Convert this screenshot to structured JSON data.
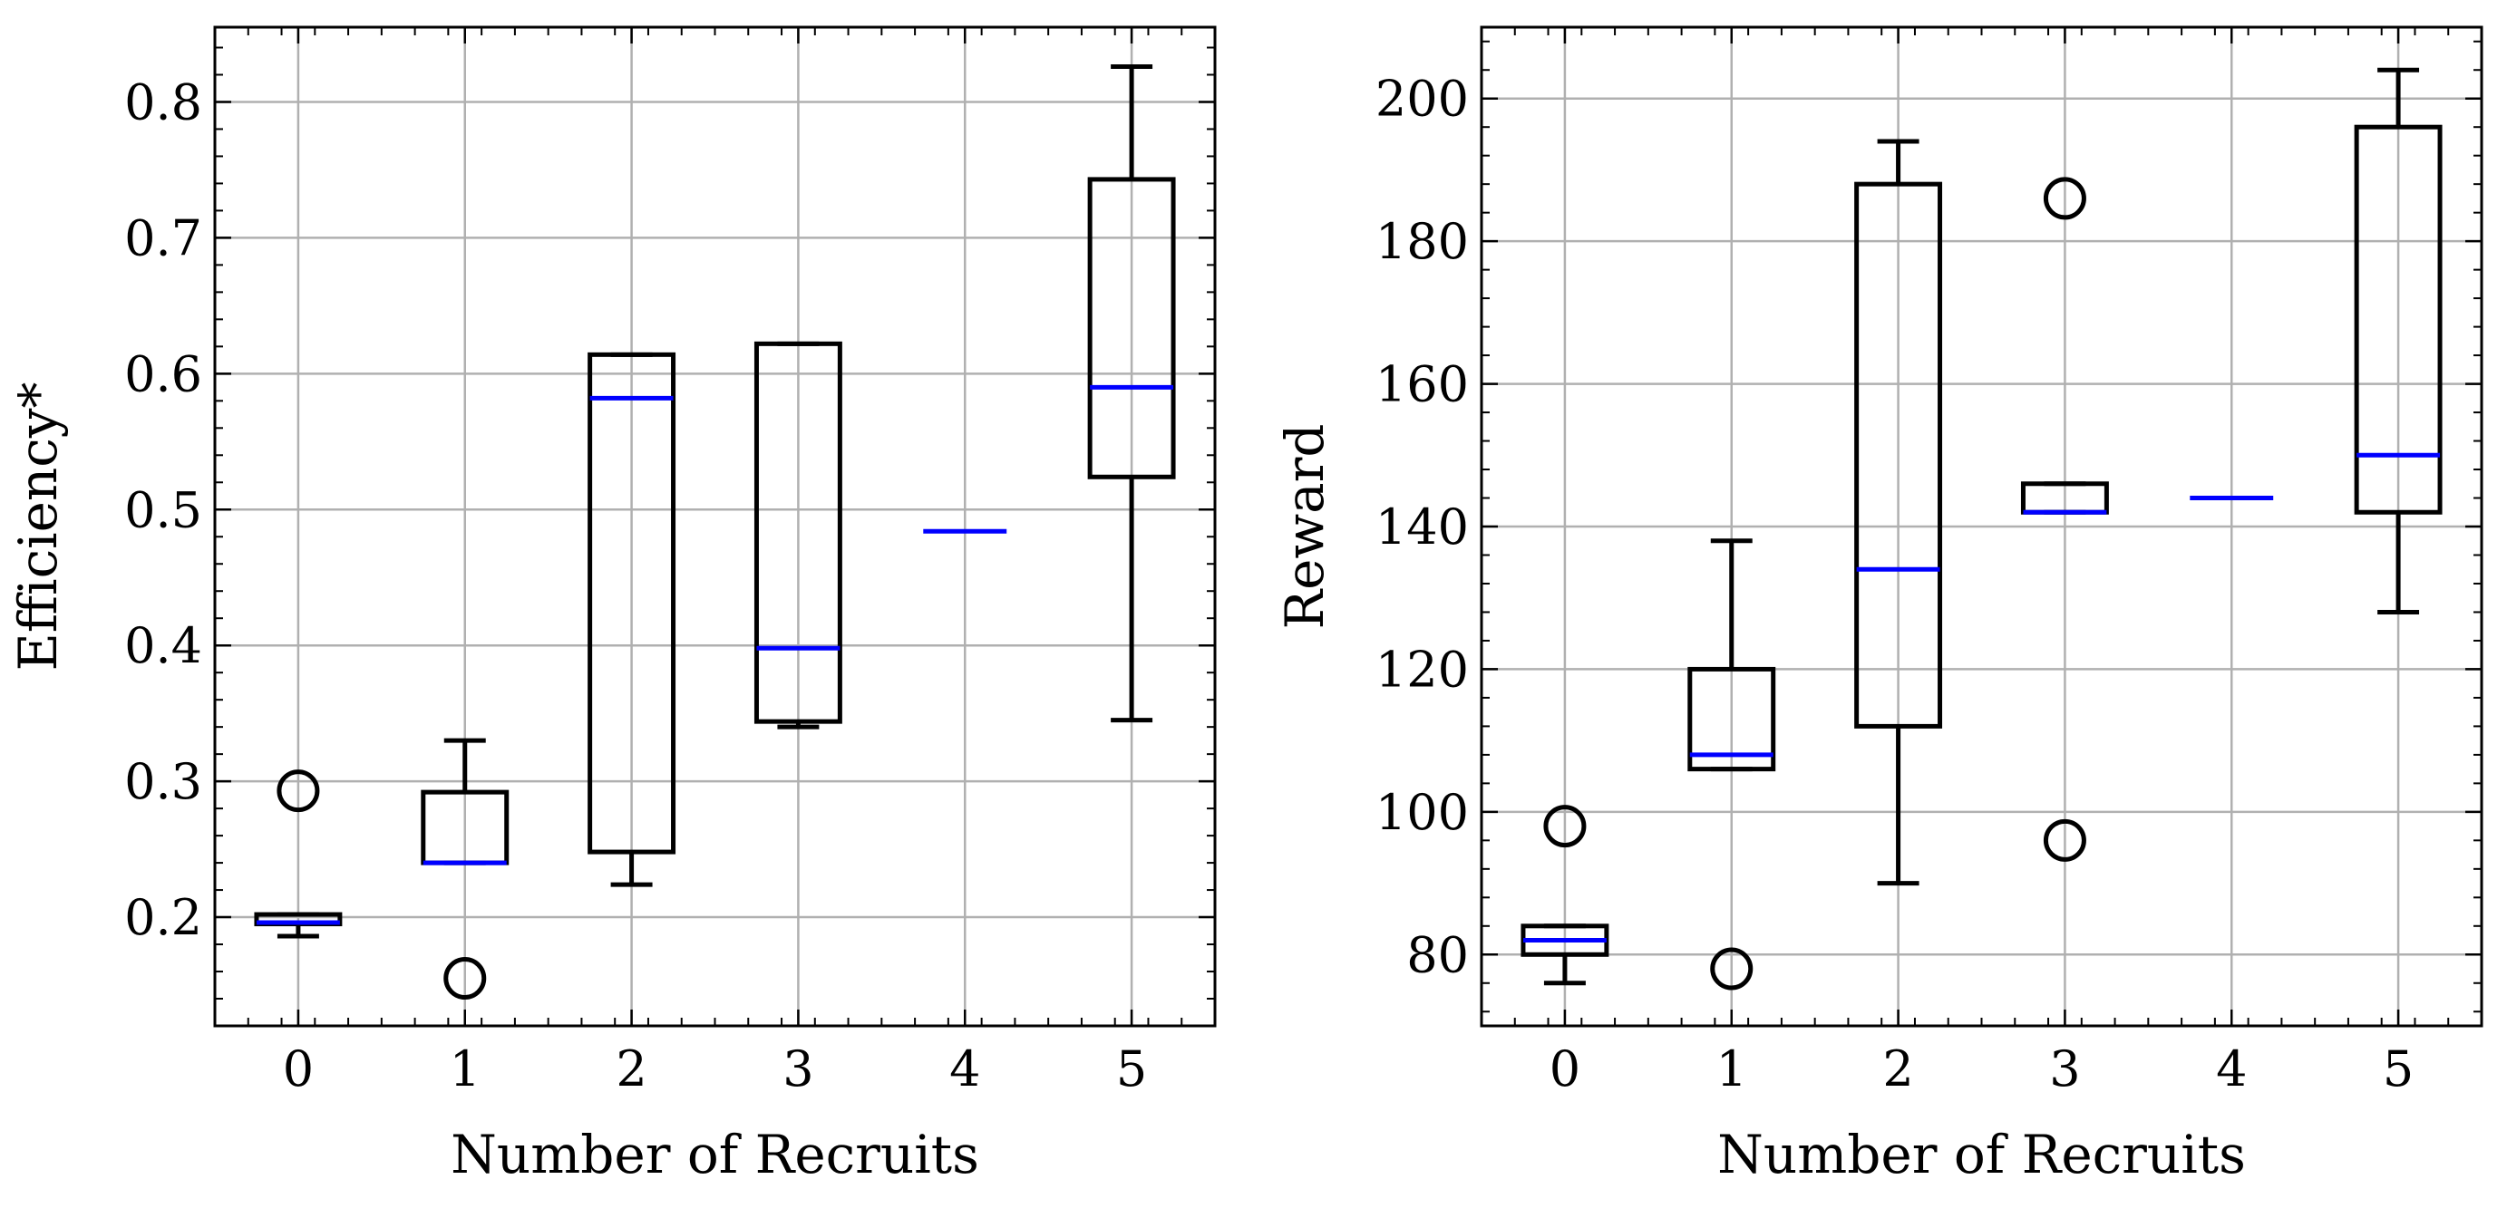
{
  "colors": {
    "box": "#000000",
    "median": "#0000ff",
    "grid": "#b0b0b0",
    "background": "#ffffff"
  },
  "chart_data": [
    {
      "type": "boxplot",
      "xlabel": "Number of Recruits",
      "ylabel": "Efficiency*",
      "categories": [
        "0",
        "1",
        "2",
        "3",
        "4",
        "5"
      ],
      "ylim": [
        0.12,
        0.855
      ],
      "yticks": [
        0.2,
        0.3,
        0.4,
        0.5,
        0.6,
        0.7,
        0.8
      ],
      "ytick_labels": [
        "0.2",
        "0.3",
        "0.4",
        "0.5",
        "0.6",
        "0.7",
        "0.8"
      ],
      "grid": true,
      "boxes": [
        {
          "category": "0",
          "whisker_low": 0.186,
          "q1": 0.195,
          "median": 0.196,
          "q3": 0.202,
          "whisker_high": 0.202,
          "outliers": [
            0.293
          ]
        },
        {
          "category": "1",
          "whisker_low": 0.24,
          "q1": 0.24,
          "median": 0.24,
          "q3": 0.292,
          "whisker_high": 0.33,
          "outliers": [
            0.155
          ]
        },
        {
          "category": "2",
          "whisker_low": 0.224,
          "q1": 0.248,
          "median": 0.582,
          "q3": 0.614,
          "whisker_high": 0.614,
          "outliers": []
        },
        {
          "category": "3",
          "whisker_low": 0.34,
          "q1": 0.344,
          "median": 0.398,
          "q3": 0.622,
          "whisker_high": 0.622,
          "outliers": []
        },
        {
          "category": "4",
          "whisker_low": 0.484,
          "q1": 0.484,
          "median": 0.484,
          "q3": 0.484,
          "whisker_high": 0.484,
          "outliers": []
        },
        {
          "category": "5",
          "whisker_low": 0.345,
          "q1": 0.524,
          "median": 0.59,
          "q3": 0.743,
          "whisker_high": 0.826,
          "outliers": []
        }
      ]
    },
    {
      "type": "boxplot",
      "xlabel": "Number of Recruits",
      "ylabel": "Reward",
      "categories": [
        "0",
        "1",
        "2",
        "3",
        "4",
        "5"
      ],
      "ylim": [
        70,
        210
      ],
      "yticks": [
        80,
        100,
        120,
        140,
        160,
        180,
        200
      ],
      "ytick_labels": [
        "80",
        "100",
        "120",
        "140",
        "160",
        "180",
        "200"
      ],
      "grid": true,
      "boxes": [
        {
          "category": "0",
          "whisker_low": 76,
          "q1": 80,
          "median": 82,
          "q3": 84,
          "whisker_high": 84,
          "outliers": [
            98
          ]
        },
        {
          "category": "1",
          "whisker_low": 106,
          "q1": 106,
          "median": 108,
          "q3": 120,
          "whisker_high": 138,
          "outliers": [
            78
          ]
        },
        {
          "category": "2",
          "whisker_low": 90,
          "q1": 112,
          "median": 134,
          "q3": 188,
          "whisker_high": 194,
          "outliers": []
        },
        {
          "category": "3",
          "whisker_low": 142,
          "q1": 142,
          "median": 142,
          "q3": 146,
          "whisker_high": 146,
          "outliers": [
            96,
            186
          ]
        },
        {
          "category": "4",
          "whisker_low": 144,
          "q1": 144,
          "median": 144,
          "q3": 144,
          "whisker_high": 144,
          "outliers": []
        },
        {
          "category": "5",
          "whisker_low": 128,
          "q1": 142,
          "median": 150,
          "q3": 196,
          "whisker_high": 204,
          "outliers": []
        }
      ]
    }
  ]
}
